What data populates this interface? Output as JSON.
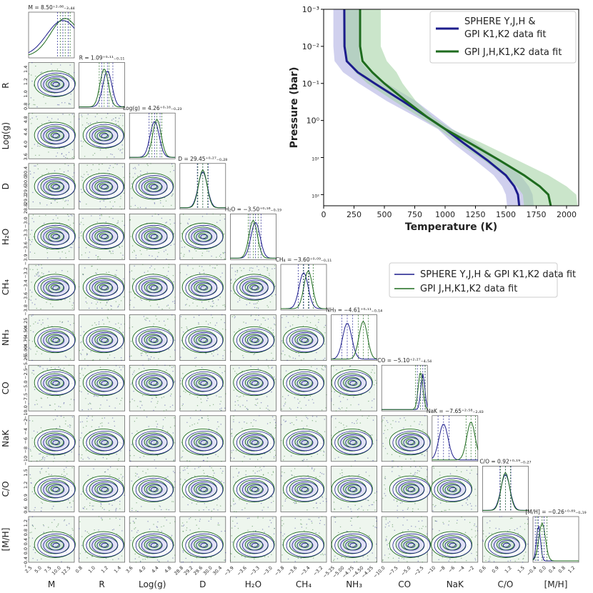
{
  "colors": {
    "blue": "#1c1c8c",
    "green": "#1e6b1e",
    "blueFill": "#a9a9e0",
    "greenFill": "#9fcf9f"
  },
  "pt_chart": {
    "type": "line",
    "xlabel": "Temperature (K)",
    "ylabel": "Pressure (bar)",
    "xlim": [
      0,
      2100
    ],
    "xticks": [
      "0",
      "250",
      "500",
      "750",
      "1000",
      "1250",
      "1500",
      "1750",
      "2000"
    ],
    "yscale": "log",
    "ylim": [
      0.001,
      200
    ],
    "yticks": [
      "10⁻³",
      "10⁻²",
      "10⁻¹",
      "10⁰",
      "10¹",
      "10²"
    ],
    "legend_position": "top-right",
    "series": [
      {
        "name": "SPHERE Y,J,H & GPI K1,K2 data fit",
        "legend_lines": [
          "SPHERE Y,J,H &",
          "GPI K1,K2 data fit"
        ],
        "color": "#1c1c8c",
        "points": [
          [
            170,
            0.001
          ],
          [
            172,
            0.01
          ],
          [
            190,
            0.025
          ],
          [
            280,
            0.05
          ],
          [
            420,
            0.1
          ],
          [
            650,
            0.3
          ],
          [
            850,
            0.8
          ],
          [
            1000,
            1.7
          ],
          [
            1150,
            4
          ],
          [
            1350,
            12
          ],
          [
            1500,
            30
          ],
          [
            1570,
            60
          ],
          [
            1600,
            100
          ],
          [
            1610,
            200
          ]
        ],
        "upper": [
          [
            290,
            0.001
          ],
          [
            290,
            0.01
          ],
          [
            300,
            0.025
          ],
          [
            380,
            0.05
          ],
          [
            520,
            0.1
          ],
          [
            760,
            0.3
          ],
          [
            930,
            0.8
          ],
          [
            1060,
            1.7
          ],
          [
            1250,
            4
          ],
          [
            1460,
            12
          ],
          [
            1620,
            30
          ],
          [
            1690,
            60
          ],
          [
            1720,
            100
          ],
          [
            1730,
            200
          ]
        ],
        "lower": [
          [
            80,
            0.001
          ],
          [
            80,
            0.01
          ],
          [
            90,
            0.025
          ],
          [
            160,
            0.05
          ],
          [
            290,
            0.1
          ],
          [
            520,
            0.3
          ],
          [
            760,
            0.8
          ],
          [
            940,
            1.7
          ],
          [
            1060,
            4
          ],
          [
            1250,
            12
          ],
          [
            1400,
            30
          ],
          [
            1470,
            60
          ],
          [
            1500,
            100
          ],
          [
            1510,
            200
          ]
        ]
      },
      {
        "name": "GPI J,H,K1,K2 data fit",
        "legend_lines": [
          "GPI J,H,K1,K2 data fit"
        ],
        "color": "#1e6b1e",
        "points": [
          [
            300,
            0.001
          ],
          [
            300,
            0.01
          ],
          [
            320,
            0.025
          ],
          [
            400,
            0.05
          ],
          [
            500,
            0.1
          ],
          [
            680,
            0.3
          ],
          [
            850,
            0.8
          ],
          [
            1000,
            1.7
          ],
          [
            1200,
            4
          ],
          [
            1450,
            12
          ],
          [
            1650,
            30
          ],
          [
            1780,
            60
          ],
          [
            1850,
            100
          ],
          [
            1870,
            200
          ]
        ],
        "upper": [
          [
            470,
            0.001
          ],
          [
            470,
            0.01
          ],
          [
            520,
            0.025
          ],
          [
            600,
            0.05
          ],
          [
            650,
            0.1
          ],
          [
            760,
            0.3
          ],
          [
            900,
            0.8
          ],
          [
            1050,
            1.7
          ],
          [
            1300,
            4
          ],
          [
            1600,
            12
          ],
          [
            1850,
            30
          ],
          [
            2000,
            60
          ],
          [
            2080,
            100
          ],
          [
            2090,
            200
          ]
        ],
        "lower": [
          [
            160,
            0.001
          ],
          [
            160,
            0.01
          ],
          [
            190,
            0.025
          ],
          [
            260,
            0.05
          ],
          [
            360,
            0.1
          ],
          [
            580,
            0.3
          ],
          [
            790,
            0.8
          ],
          [
            950,
            1.7
          ],
          [
            1100,
            4
          ],
          [
            1320,
            12
          ],
          [
            1480,
            30
          ],
          [
            1590,
            60
          ],
          [
            1640,
            100
          ],
          [
            1650,
            200
          ]
        ]
      }
    ]
  },
  "corner": {
    "type": "scatter",
    "labels": [
      "M",
      "R",
      "Log(g)",
      "D",
      "H₂O",
      "CH₄",
      "NH₃",
      "CO",
      "NaK",
      "C/O",
      "[M/H]"
    ],
    "titles": [
      "M = 8.50⁺²·⁸⁶₋₃.₄₄",
      "R = 1.09⁺⁰·¹¹₋₀.₁₁",
      "Log(g) = 4.26⁺⁰·¹⁶₋₀.₂₃",
      "D = 29.45⁺⁰·²⁷₋₀.₂₈",
      "H₂O = −3.50⁺⁰·¹⁶₋₀.₁₉",
      "CH₄ = −3.60⁺⁰·⁰⁹₋₀.₁₁",
      "NH₃ = −4.61⁺⁰·¹¹₋₀.₁₄",
      "CO = −5.10⁺²·²⁷₋₄.₅₄",
      "NaK = −7.65⁺²·⁵⁸₋₂.₈₃",
      "C/O = 0.92⁺⁰·¹⁹₋₀.₂₇",
      "[M/H] = −0.26⁺⁰·⁶⁹₋₀.₁₉"
    ],
    "xticks": [
      [
        "2.5",
        "5.0",
        "7.5",
        "10.0",
        "12.5"
      ],
      [
        "0.8",
        "1.0",
        "1.2",
        "1.4"
      ],
      [
        "3.6",
        "4.0",
        "4.4",
        "4.8"
      ],
      [
        "28.8",
        "29.2",
        "29.6",
        "30.0",
        "30.4"
      ],
      [
        "−3.9",
        "−3.6",
        "−3.3",
        "−3.0"
      ],
      [
        "−3.8",
        "−3.6",
        "−3.4",
        "−3.2"
      ],
      [
        "−5.25",
        "−5.00",
        "−4.75",
        "−4.50",
        "−4.25"
      ],
      [
        "−10.0",
        "−7.5",
        "−5.0",
        "−2.5"
      ],
      [
        "−10",
        "−8",
        "−6",
        "−4",
        "−2"
      ],
      [
        "0.6",
        "0.9",
        "1.2",
        "1.5"
      ],
      [
        "−0.4",
        "0.0",
        "0.4",
        "0.8",
        "1.2"
      ]
    ],
    "yticks": [
      [],
      [
        "0.8",
        "1.0",
        "1.2",
        "1.4"
      ],
      [
        "3.6",
        "4.0",
        "4.4",
        "4.8"
      ],
      [
        "28.8",
        "29.2",
        "29.6",
        "30.0",
        "30.4"
      ],
      [
        "−3.9",
        "−3.6",
        "−3.3",
        "−3.0"
      ],
      [
        "−3.8",
        "−3.6",
        "−3.4",
        "−3.2"
      ],
      [
        "−5.25",
        "−5.00",
        "−4.75",
        "−4.50",
        "−4.25"
      ],
      [
        "−10.0",
        "−7.5",
        "−5.0",
        "−2.5"
      ],
      [
        "−10",
        "−8",
        "−6",
        "−4",
        "−2"
      ],
      [
        "0.6",
        "0.9",
        "1.2",
        "1.5"
      ],
      [
        "−0.4",
        "0.0",
        "0.4",
        "0.8",
        "1.2"
      ]
    ],
    "hist_peaks": {
      "blue": [
        0.75,
        0.62,
        0.55,
        0.5,
        0.55,
        0.5,
        0.35,
        0.9,
        0.25,
        0.5,
        0.12
      ],
      "green": [
        0.8,
        0.55,
        0.6,
        0.5,
        0.5,
        0.6,
        0.7,
        0.85,
        0.85,
        0.5,
        0.2
      ]
    },
    "legend": [
      {
        "name": "SPHERE Y,J,H & GPI K1,K2 data fit",
        "color": "#1c1c8c"
      },
      {
        "name": "GPI J,H,K1,K2 data fit",
        "color": "#1e6b1e"
      }
    ]
  }
}
